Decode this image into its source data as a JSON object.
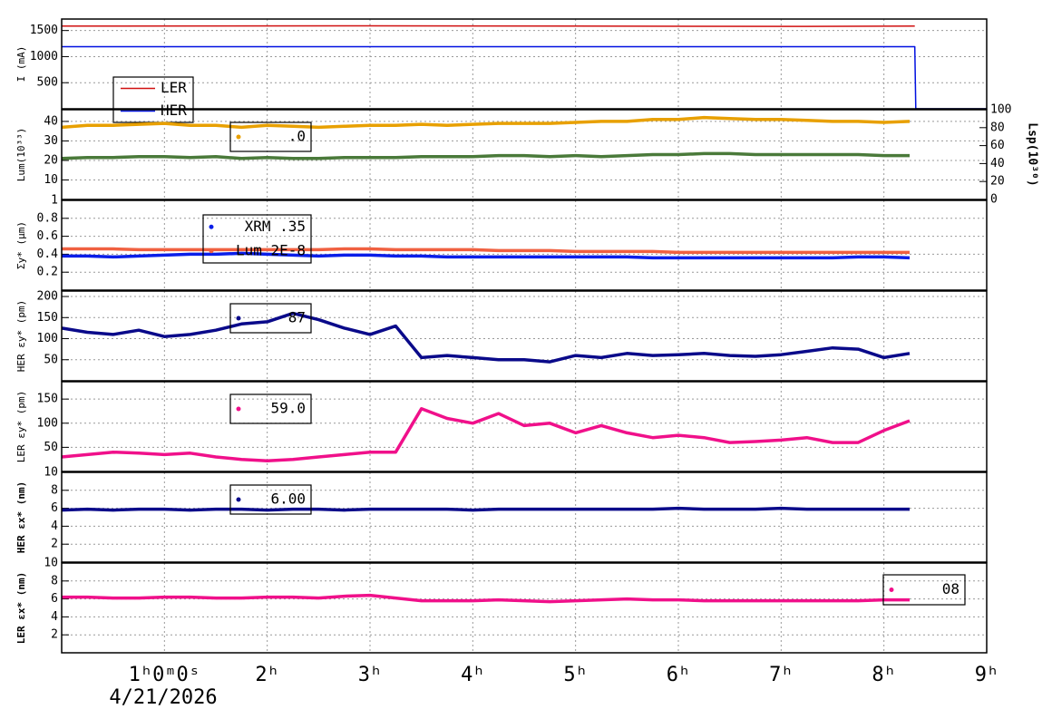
{
  "x_axis": {
    "xlim": [
      0,
      9
    ],
    "xticks": [
      {
        "value": 1,
        "label": "1ʰ0ᵐ0ˢ"
      },
      {
        "value": 2,
        "label": "2ʰ"
      },
      {
        "value": 3,
        "label": "3ʰ"
      },
      {
        "value": 4,
        "label": "4ʰ"
      },
      {
        "value": 5,
        "label": "5ʰ"
      },
      {
        "value": 6,
        "label": "6ʰ"
      },
      {
        "value": 7,
        "label": "7ʰ"
      },
      {
        "value": 8,
        "label": "8ʰ"
      },
      {
        "value": 9,
        "label": "9ʰ"
      }
    ],
    "date": "4/21/2026"
  },
  "chart_data": [
    {
      "type": "line",
      "y_label": "I (mA)",
      "ylim": [
        0,
        1720
      ],
      "yticks": [
        500,
        1000,
        1500
      ],
      "grid": true,
      "x": [
        0,
        3,
        5,
        7.15,
        8.3,
        8.31,
        9
      ],
      "series": [
        {
          "name": "LER",
          "color": "#d01010",
          "values": [
            1585,
            1590,
            1585,
            1580,
            1585,
            null,
            null
          ]
        },
        {
          "name": "HER",
          "color": "#0010e0",
          "values": [
            1190,
            1190,
            1190,
            1190,
            1190,
            0,
            0
          ]
        }
      ]
    },
    {
      "type": "line",
      "y_label": "Lum(10³³)",
      "ylim": [
        0,
        46
      ],
      "yticks": [
        10,
        20,
        30,
        40
      ],
      "grid": true,
      "y2_label": "Lsp(10³⁰)",
      "y2lim": [
        0,
        100
      ],
      "y2ticks": [
        0,
        20,
        40,
        60,
        80,
        100
      ],
      "x": [
        0,
        0.25,
        0.5,
        0.75,
        1,
        1.25,
        1.5,
        1.75,
        2,
        2.25,
        2.5,
        2.75,
        3,
        3.25,
        3.5,
        3.75,
        4,
        4.25,
        4.5,
        4.75,
        5,
        5.25,
        5.5,
        5.75,
        6,
        6.25,
        6.5,
        6.75,
        7,
        7.25,
        7.5,
        7.75,
        8,
        8.25
      ],
      "series": [
        {
          "name": ".0",
          "color": "#e8a000",
          "values": [
            37,
            38,
            38,
            38.5,
            39,
            38,
            38,
            37,
            38,
            37.5,
            37,
            37.5,
            38,
            38,
            38.5,
            38,
            38.5,
            39,
            39,
            39,
            39.5,
            40,
            40,
            41,
            41,
            42,
            41.5,
            41,
            41,
            40.5,
            40,
            40,
            39.5,
            40
          ]
        },
        {
          "color": "#4a7a3a",
          "values": [
            21,
            21.5,
            21.5,
            22,
            22,
            21.5,
            22,
            21,
            21.5,
            21,
            21,
            21.5,
            21.5,
            21.5,
            22,
            22,
            22,
            22.5,
            22.5,
            22,
            22.5,
            22,
            22.5,
            23,
            23,
            23.5,
            23.5,
            23,
            23,
            23,
            23,
            23,
            22.5,
            22.5
          ]
        }
      ]
    },
    {
      "type": "line",
      "y_label": "Σy* (μm)",
      "ylim": [
        0,
        1
      ],
      "yticks": [
        0.2,
        0.4,
        0.6,
        0.8,
        1
      ],
      "grid": true,
      "x": [
        0,
        0.25,
        0.5,
        0.75,
        1,
        1.25,
        1.5,
        1.75,
        2,
        2.25,
        2.5,
        2.75,
        3,
        3.25,
        3.5,
        3.75,
        4,
        4.25,
        4.5,
        4.75,
        5,
        5.25,
        5.5,
        5.75,
        6,
        6.25,
        6.5,
        6.75,
        7,
        7.25,
        7.5,
        7.75,
        8,
        8.25
      ],
      "series": [
        {
          "name": "XRM  .35",
          "color": "#0a1ee8",
          "values": [
            0.38,
            0.38,
            0.37,
            0.38,
            0.39,
            0.4,
            0.4,
            0.41,
            0.4,
            0.39,
            0.38,
            0.39,
            0.39,
            0.38,
            0.38,
            0.37,
            0.37,
            0.37,
            0.37,
            0.37,
            0.37,
            0.37,
            0.37,
            0.36,
            0.36,
            0.36,
            0.36,
            0.36,
            0.36,
            0.36,
            0.36,
            0.37,
            0.37,
            0.36
          ]
        },
        {
          "name": "Lum 2E-8",
          "color": "#f06040",
          "values": [
            0.46,
            0.46,
            0.46,
            0.45,
            0.45,
            0.45,
            0.45,
            0.45,
            0.45,
            0.45,
            0.45,
            0.46,
            0.46,
            0.45,
            0.45,
            0.45,
            0.45,
            0.44,
            0.44,
            0.44,
            0.43,
            0.43,
            0.43,
            0.43,
            0.42,
            0.42,
            0.42,
            0.42,
            0.42,
            0.42,
            0.42,
            0.42,
            0.42,
            0.42
          ]
        }
      ]
    },
    {
      "type": "line",
      "y_label": "HER εy* (pm)",
      "ylim": [
        0,
        213
      ],
      "yticks": [
        50,
        100,
        150,
        200
      ],
      "grid": true,
      "x": [
        0,
        0.25,
        0.5,
        0.75,
        1,
        1.25,
        1.5,
        1.75,
        2,
        2.25,
        2.5,
        2.75,
        3,
        3.25,
        3.5,
        3.75,
        4,
        4.25,
        4.5,
        4.75,
        5,
        5.25,
        5.5,
        5.75,
        6,
        6.25,
        6.5,
        6.75,
        7,
        7.25,
        7.5,
        7.75,
        8,
        8.25
      ],
      "series": [
        {
          "name": "87",
          "color": "#0a0a8a",
          "values": [
            125,
            115,
            110,
            120,
            105,
            110,
            120,
            135,
            140,
            160,
            145,
            125,
            110,
            130,
            55,
            60,
            55,
            50,
            50,
            45,
            60,
            55,
            65,
            60,
            62,
            65,
            60,
            58,
            62,
            70,
            78,
            75,
            55,
            65
          ]
        }
      ]
    },
    {
      "type": "line",
      "y_label": "LER εy* (pm)",
      "ylim": [
        0,
        186
      ],
      "yticks": [
        50,
        100,
        150
      ],
      "grid": true,
      "x": [
        0,
        0.25,
        0.5,
        0.75,
        1,
        1.25,
        1.5,
        1.75,
        2,
        2.25,
        2.5,
        2.75,
        3,
        3.25,
        3.5,
        3.75,
        4,
        4.25,
        4.5,
        4.75,
        5,
        5.25,
        5.5,
        5.75,
        6,
        6.25,
        6.5,
        6.75,
        7,
        7.25,
        7.5,
        7.75,
        8,
        8.25
      ],
      "series": [
        {
          "name": "59.0",
          "color": "#f0108a",
          "values": [
            30,
            35,
            40,
            38,
            35,
            38,
            30,
            25,
            22,
            25,
            30,
            35,
            40,
            40,
            130,
            110,
            100,
            120,
            95,
            100,
            80,
            95,
            80,
            70,
            75,
            70,
            60,
            62,
            65,
            70,
            60,
            60,
            85,
            105
          ]
        }
      ]
    },
    {
      "type": "line",
      "y_label": "HER εx* (nm)",
      "ylim": [
        0,
        10
      ],
      "yticks": [
        2,
        4,
        6,
        8,
        10
      ],
      "grid": true,
      "x": [
        0,
        0.25,
        0.5,
        0.75,
        1,
        1.25,
        1.5,
        1.75,
        2,
        2.25,
        2.5,
        2.75,
        3,
        3.25,
        3.5,
        3.75,
        4,
        4.25,
        4.5,
        4.75,
        5,
        5.25,
        5.5,
        5.75,
        6,
        6.25,
        6.5,
        6.75,
        7,
        7.25,
        7.5,
        7.75,
        8,
        8.25
      ],
      "series": [
        {
          "name": "6.00",
          "color": "#0a0a8a",
          "values": [
            5.8,
            5.9,
            5.8,
            5.9,
            5.9,
            5.8,
            5.9,
            5.9,
            5.8,
            5.9,
            5.9,
            5.8,
            5.9,
            5.9,
            5.9,
            5.9,
            5.8,
            5.9,
            5.9,
            5.9,
            5.9,
            5.9,
            5.9,
            5.9,
            6.0,
            5.9,
            5.9,
            5.9,
            6.0,
            5.9,
            5.9,
            5.9,
            5.9,
            5.9
          ]
        }
      ]
    },
    {
      "type": "line",
      "y_label": "LER εx* (nm)",
      "ylim": [
        0,
        10
      ],
      "yticks": [
        2,
        4,
        6,
        8,
        10
      ],
      "grid": true,
      "x": [
        0,
        0.25,
        0.5,
        0.75,
        1,
        1.25,
        1.5,
        1.75,
        2,
        2.25,
        2.5,
        2.75,
        3,
        3.25,
        3.5,
        3.75,
        4,
        4.25,
        4.5,
        4.75,
        5,
        5.25,
        5.5,
        5.75,
        6,
        6.25,
        6.5,
        6.75,
        7,
        7.25,
        7.5,
        7.75,
        8,
        8.25
      ],
      "series": [
        {
          "name": "08",
          "color": "#f0108a",
          "values": [
            6.2,
            6.2,
            6.1,
            6.1,
            6.2,
            6.2,
            6.1,
            6.1,
            6.2,
            6.2,
            6.1,
            6.3,
            6.4,
            6.1,
            5.8,
            5.8,
            5.8,
            5.9,
            5.8,
            5.7,
            5.8,
            5.9,
            6.0,
            5.9,
            5.9,
            5.8,
            5.8,
            5.8,
            5.8,
            5.8,
            5.8,
            5.8,
            5.9,
            5.9
          ]
        }
      ]
    }
  ]
}
